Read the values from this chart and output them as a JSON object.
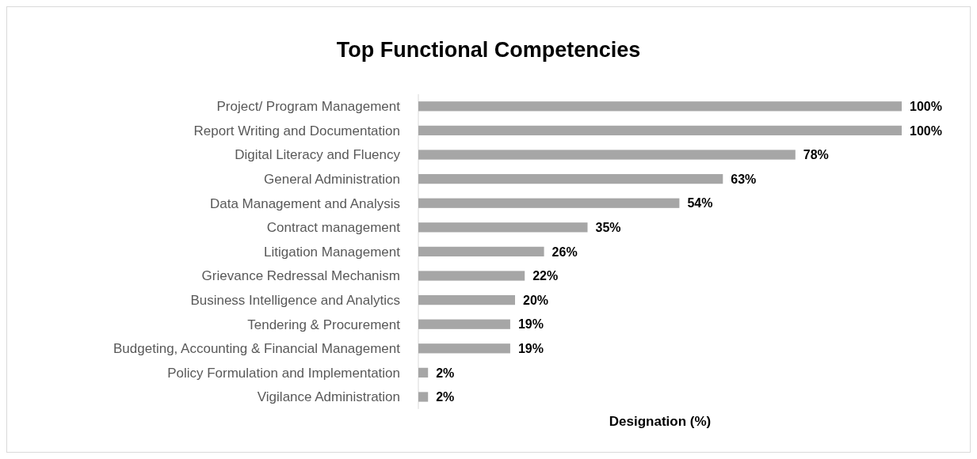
{
  "chart_data": {
    "type": "bar",
    "orientation": "horizontal",
    "title": "Top Functional Competencies",
    "xlabel": "Designation (%)",
    "categories": [
      "Project/ Program Management",
      "Report Writing and Documentation",
      "Digital Literacy and Fluency",
      "General Administration",
      "Data Management and Analysis",
      "Contract management",
      "Litigation Management",
      "Grievance Redressal Mechanism",
      "Business Intelligence and Analytics",
      "Tendering & Procurement",
      "Budgeting, Accounting & Financial Management",
      "Policy Formulation and Implementation",
      "Vigilance Administration"
    ],
    "values": [
      100,
      100,
      78,
      63,
      54,
      35,
      26,
      22,
      20,
      19,
      19,
      2,
      2
    ],
    "value_labels": [
      "100%",
      "100%",
      "78%",
      "63%",
      "54%",
      "35%",
      "26%",
      "22%",
      "20%",
      "19%",
      "19%",
      "2%",
      "2%"
    ],
    "color": "#a6a6a6"
  }
}
